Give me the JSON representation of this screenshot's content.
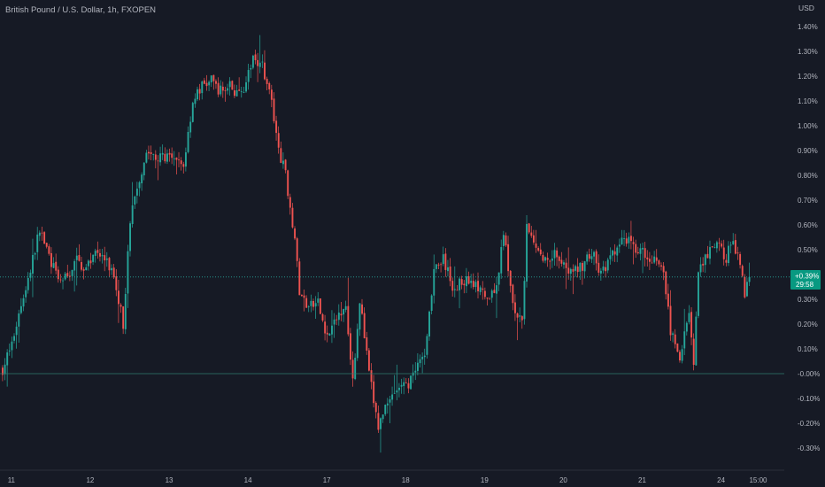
{
  "header": {
    "title": "British Pound / U.S. Dollar, 1h, FXOPEN"
  },
  "colors": {
    "background": "#161a25",
    "up": "#26a69a",
    "down": "#ef5350",
    "text": "#b2b5be",
    "badge_bg": "#089981"
  },
  "chart_data": {
    "type": "candlestick",
    "title": "British Pound / U.S. Dollar, 1h, FXOPEN",
    "y_axis_unit": "USD",
    "y_scale": "percent",
    "ylim": [
      -0.35,
      1.45
    ],
    "y_ticks": [
      "1.40%",
      "1.30%",
      "1.20%",
      "1.10%",
      "1.00%",
      "0.90%",
      "0.80%",
      "0.70%",
      "0.60%",
      "0.50%",
      "0.30%",
      "0.20%",
      "0.10%",
      "-0.00%",
      "-0.10%",
      "-0.20%",
      "-0.30%"
    ],
    "y_tick_values": [
      1.4,
      1.3,
      1.2,
      1.1,
      1.0,
      0.9,
      0.8,
      0.7,
      0.6,
      0.5,
      0.3,
      0.2,
      0.1,
      0.0,
      -0.1,
      -0.2,
      -0.3
    ],
    "x_ticks": [
      {
        "label": "11",
        "bar": 3
      },
      {
        "label": "12",
        "bar": 37
      },
      {
        "label": "13",
        "bar": 71
      },
      {
        "label": "14",
        "bar": 105
      },
      {
        "label": "17",
        "bar": 139
      },
      {
        "label": "18",
        "bar": 173
      },
      {
        "label": "19",
        "bar": 207
      },
      {
        "label": "20",
        "bar": 241
      },
      {
        "label": "21",
        "bar": 275
      },
      {
        "label": "24",
        "bar": 309
      },
      {
        "label": "15:00",
        "bar": 325
      }
    ],
    "zero_line": 0.0,
    "current": {
      "value": 0.39,
      "label": "+0.39%",
      "countdown": "29:58"
    },
    "close_path": [
      [
        0,
        0.02
      ],
      [
        4,
        0.12
      ],
      [
        8,
        0.28
      ],
      [
        12,
        0.42
      ],
      [
        16,
        0.58
      ],
      [
        20,
        0.48
      ],
      [
        24,
        0.37
      ],
      [
        28,
        0.39
      ],
      [
        32,
        0.46
      ],
      [
        36,
        0.42
      ],
      [
        40,
        0.5
      ],
      [
        44,
        0.46
      ],
      [
        48,
        0.4
      ],
      [
        52,
        0.2
      ],
      [
        55,
        0.62
      ],
      [
        58,
        0.75
      ],
      [
        62,
        0.9
      ],
      [
        66,
        0.86
      ],
      [
        70,
        0.88
      ],
      [
        74,
        0.85
      ],
      [
        78,
        0.84
      ],
      [
        82,
        1.1
      ],
      [
        86,
        1.16
      ],
      [
        90,
        1.18
      ],
      [
        94,
        1.14
      ],
      [
        98,
        1.16
      ],
      [
        102,
        1.12
      ],
      [
        106,
        1.2
      ],
      [
        108,
        1.28
      ],
      [
        112,
        1.25
      ],
      [
        116,
        1.1
      ],
      [
        118,
        0.95
      ],
      [
        122,
        0.8
      ],
      [
        126,
        0.55
      ],
      [
        128,
        0.32
      ],
      [
        132,
        0.27
      ],
      [
        136,
        0.28
      ],
      [
        140,
        0.15
      ],
      [
        144,
        0.22
      ],
      [
        148,
        0.28
      ],
      [
        151,
        -0.02
      ],
      [
        154,
        0.3
      ],
      [
        158,
        0.0
      ],
      [
        162,
        -0.22
      ],
      [
        166,
        -0.1
      ],
      [
        170,
        -0.06
      ],
      [
        174,
        -0.05
      ],
      [
        178,
        0.0
      ],
      [
        182,
        0.08
      ],
      [
        186,
        0.42
      ],
      [
        190,
        0.46
      ],
      [
        194,
        0.35
      ],
      [
        198,
        0.37
      ],
      [
        202,
        0.38
      ],
      [
        206,
        0.33
      ],
      [
        210,
        0.28
      ],
      [
        214,
        0.4
      ],
      [
        216,
        0.58
      ],
      [
        220,
        0.27
      ],
      [
        224,
        0.2
      ],
      [
        226,
        0.58
      ],
      [
        230,
        0.5
      ],
      [
        234,
        0.46
      ],
      [
        238,
        0.49
      ],
      [
        242,
        0.45
      ],
      [
        246,
        0.4
      ],
      [
        250,
        0.44
      ],
      [
        254,
        0.49
      ],
      [
        258,
        0.4
      ],
      [
        262,
        0.46
      ],
      [
        266,
        0.52
      ],
      [
        270,
        0.55
      ],
      [
        274,
        0.5
      ],
      [
        278,
        0.48
      ],
      [
        282,
        0.46
      ],
      [
        285,
        0.4
      ],
      [
        288,
        0.18
      ],
      [
        292,
        0.06
      ],
      [
        296,
        0.26
      ],
      [
        298,
        0.03
      ],
      [
        300,
        0.4
      ],
      [
        304,
        0.48
      ],
      [
        308,
        0.52
      ],
      [
        312,
        0.47
      ],
      [
        314,
        0.53
      ],
      [
        318,
        0.46
      ],
      [
        320,
        0.33
      ],
      [
        322,
        0.38
      ]
    ]
  }
}
